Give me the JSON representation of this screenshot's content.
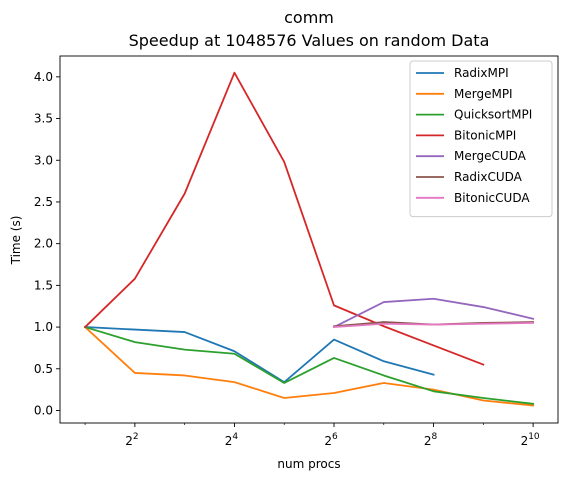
{
  "chart_data": {
    "type": "line",
    "title": "comm",
    "subtitle": "Speedup at 1048576 Values on random Data",
    "xlabel": "num procs",
    "ylabel": "Time (s)",
    "x_scale": "log2",
    "xlim": [
      1.41,
      1448
    ],
    "ylim": [
      -0.15,
      4.25
    ],
    "x_ticks": [
      {
        "value": 4,
        "base": "2",
        "exp": "2"
      },
      {
        "value": 16,
        "base": "2",
        "exp": "4"
      },
      {
        "value": 64,
        "base": "2",
        "exp": "6"
      },
      {
        "value": 256,
        "base": "2",
        "exp": "8"
      },
      {
        "value": 1024,
        "base": "2",
        "exp": "10"
      }
    ],
    "y_ticks": [
      {
        "value": 0.0,
        "label": "0.0"
      },
      {
        "value": 0.5,
        "label": "0.5"
      },
      {
        "value": 1.0,
        "label": "1.0"
      },
      {
        "value": 1.5,
        "label": "1.5"
      },
      {
        "value": 2.0,
        "label": "2.0"
      },
      {
        "value": 2.5,
        "label": "2.5"
      },
      {
        "value": 3.0,
        "label": "3.0"
      },
      {
        "value": 3.5,
        "label": "3.5"
      },
      {
        "value": 4.0,
        "label": "4.0"
      }
    ],
    "grid": false,
    "legend_position": "top-right",
    "series": [
      {
        "name": "RadixMPI",
        "color": "#1f77b4",
        "x": [
          2,
          4,
          8,
          16,
          32,
          64,
          128,
          256
        ],
        "y": [
          1.0,
          0.97,
          0.94,
          0.71,
          0.34,
          0.85,
          0.59,
          0.43
        ]
      },
      {
        "name": "MergeMPI",
        "color": "#ff7f0e",
        "x": [
          2,
          4,
          8,
          16,
          32,
          64,
          128,
          256,
          512,
          1024
        ],
        "y": [
          1.0,
          0.45,
          0.42,
          0.34,
          0.15,
          0.21,
          0.33,
          0.25,
          0.12,
          0.06
        ]
      },
      {
        "name": "QuicksortMPI",
        "color": "#2ca02c",
        "x": [
          2,
          4,
          8,
          16,
          32,
          64,
          128,
          256,
          512,
          1024
        ],
        "y": [
          1.0,
          0.82,
          0.73,
          0.68,
          0.33,
          0.63,
          0.42,
          0.23,
          0.15,
          0.08
        ]
      },
      {
        "name": "BitonicMPI",
        "color": "#d62728",
        "x": [
          2,
          4,
          8,
          16,
          32,
          64,
          128,
          256,
          512
        ],
        "y": [
          1.0,
          1.58,
          2.6,
          4.05,
          2.98,
          1.26,
          1.01,
          0.78,
          0.55
        ]
      },
      {
        "name": "MergeCUDA",
        "color": "#9467bd",
        "x": [
          64,
          128,
          256,
          512,
          1024
        ],
        "y": [
          1.0,
          1.3,
          1.34,
          1.24,
          1.1
        ]
      },
      {
        "name": "RadixCUDA",
        "color": "#8c564b",
        "x": [
          64,
          128,
          256,
          512,
          1024
        ],
        "y": [
          1.01,
          1.06,
          1.03,
          1.05,
          1.06
        ]
      },
      {
        "name": "BitonicCUDA",
        "color": "#e377c2",
        "x": [
          64,
          128,
          256,
          512,
          1024
        ],
        "y": [
          1.0,
          1.04,
          1.03,
          1.04,
          1.05
        ]
      }
    ]
  }
}
